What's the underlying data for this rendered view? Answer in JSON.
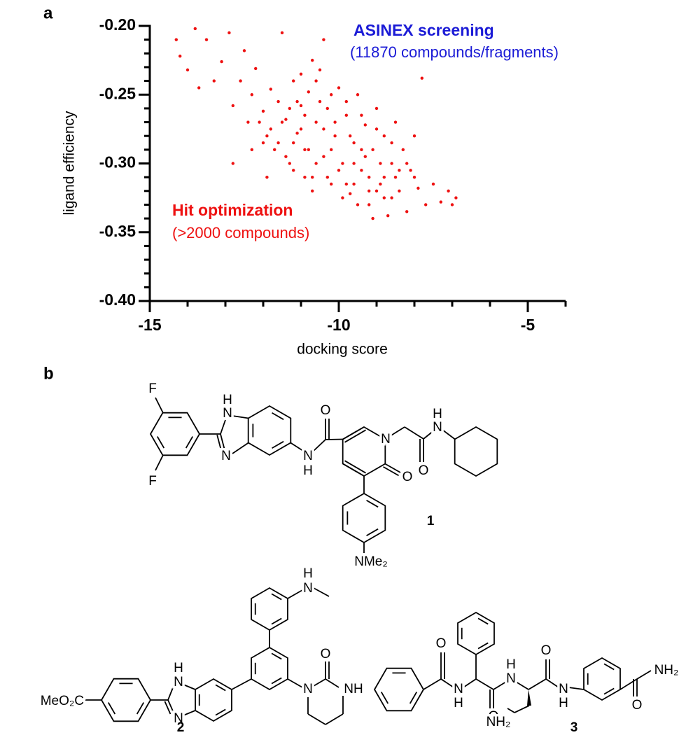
{
  "panel_labels": [
    "a",
    "b"
  ],
  "chart_data": {
    "type": "scatter",
    "x_label": "docking score",
    "y_label": "ligand efficiency",
    "color": "#ee1111",
    "annotations": [
      {
        "text": "ASINEX screening",
        "color": "#1b1bd6"
      },
      {
        "text": "(11870 compounds/fragments)",
        "color": "#1b1bd6"
      },
      {
        "text": "Hit optimization",
        "color": "#ee1111"
      },
      {
        "text": "(>2000 compounds)",
        "color": "#ee1111"
      }
    ],
    "xlim": [
      -15,
      -4
    ],
    "ylim": [
      -0.4,
      -0.2
    ],
    "xticks": [
      -15,
      -10,
      -5
    ],
    "yticks": [
      {
        "value": -0.2,
        "label": "-0.20"
      },
      {
        "value": -0.25,
        "label": "-0.25"
      },
      {
        "value": -0.3,
        "label": "-0.30"
      },
      {
        "value": -0.35,
        "label": "-0.35"
      },
      {
        "value": -0.4,
        "label": "-0.40"
      }
    ],
    "xminorticks": [
      -14,
      -13,
      -12,
      -11,
      -9,
      -8,
      -7,
      -6,
      -4
    ],
    "yminorticks": [
      -0.21,
      -0.22,
      -0.23,
      -0.24,
      -0.26,
      -0.27,
      -0.28,
      -0.29,
      -0.31,
      -0.32,
      -0.33,
      -0.34,
      -0.36,
      -0.37,
      -0.38,
      -0.39
    ],
    "x": [
      -14.3,
      -14.2,
      -14.0,
      -13.8,
      -13.7,
      -13.5,
      -13.3,
      -13.1,
      -12.9,
      -12.8,
      -12.6,
      -12.5,
      -12.3,
      -12.2,
      -12.1,
      -12.0,
      -11.9,
      -11.8,
      -11.7,
      -11.6,
      -11.5,
      -11.4,
      -11.3,
      -11.2,
      -11.1,
      -11.0,
      -10.9,
      -10.8,
      -10.7,
      -10.6,
      -10.5,
      -10.4,
      -10.3,
      -10.2,
      -10.1,
      -10.0,
      -9.9,
      -9.8,
      -9.7,
      -9.6,
      -9.5,
      -9.4,
      -9.3,
      -9.2,
      -9.1,
      -9.0,
      -8.9,
      -8.8,
      -8.7,
      -8.6,
      -8.5,
      -8.4,
      -8.3,
      -8.2,
      -8.1,
      -8.0,
      -7.9,
      -7.8,
      -7.7,
      -7.5,
      -7.3,
      -7.1,
      -7.0,
      -6.9,
      -11.5,
      -11.2,
      -11.0,
      -10.8,
      -10.6,
      -10.4,
      -10.2,
      -10.0,
      -9.8,
      -9.6,
      -9.4,
      -9.2,
      -9.0,
      -8.8,
      -8.6,
      -11.3,
      -10.9,
      -10.5,
      -10.1,
      -9.7,
      -9.3,
      -8.9,
      -8.5,
      -11.8,
      -11.6,
      -11.4,
      -10.7,
      -10.3,
      -9.9,
      -9.5,
      -9.1,
      -12.4,
      -12.0,
      -11.1,
      -10.6,
      -10.2,
      -9.8,
      -9.4,
      -9.0,
      -8.6,
      -8.2,
      -8.0,
      -12.8,
      -12.3,
      -11.9,
      -11.2,
      -10.9,
      -9.6,
      -9.2,
      -8.8,
      -8.4,
      -10.4,
      -11.0,
      -10.7
    ],
    "values": [
      -0.21,
      -0.222,
      -0.232,
      -0.202,
      -0.245,
      -0.21,
      -0.24,
      -0.226,
      -0.205,
      -0.258,
      -0.24,
      -0.218,
      -0.25,
      -0.231,
      -0.27,
      -0.262,
      -0.28,
      -0.246,
      -0.29,
      -0.255,
      -0.205,
      -0.268,
      -0.3,
      -0.24,
      -0.278,
      -0.258,
      -0.29,
      -0.248,
      -0.31,
      -0.27,
      -0.232,
      -0.295,
      -0.26,
      -0.315,
      -0.28,
      -0.245,
      -0.3,
      -0.265,
      -0.322,
      -0.285,
      -0.25,
      -0.305,
      -0.272,
      -0.33,
      -0.29,
      -0.26,
      -0.315,
      -0.28,
      -0.338,
      -0.3,
      -0.27,
      -0.32,
      -0.29,
      -0.335,
      -0.305,
      -0.28,
      -0.318,
      -0.238,
      -0.33,
      -0.315,
      -0.328,
      -0.32,
      -0.33,
      -0.325,
      -0.27,
      -0.285,
      -0.275,
      -0.29,
      -0.3,
      -0.275,
      -0.29,
      -0.305,
      -0.315,
      -0.3,
      -0.29,
      -0.31,
      -0.32,
      -0.31,
      -0.325,
      -0.26,
      -0.265,
      -0.255,
      -0.27,
      -0.28,
      -0.295,
      -0.3,
      -0.31,
      -0.275,
      -0.285,
      -0.295,
      -0.32,
      -0.31,
      -0.325,
      -0.33,
      -0.34,
      -0.27,
      -0.285,
      -0.255,
      -0.24,
      -0.25,
      -0.255,
      -0.265,
      -0.275,
      -0.285,
      -0.3,
      -0.31,
      -0.3,
      -0.29,
      -0.31,
      -0.305,
      -0.31,
      -0.315,
      -0.32,
      -0.325,
      -0.305,
      -0.21,
      -0.235,
      -0.225
    ]
  },
  "structures": [
    {
      "label": "1",
      "atoms": [
        "F",
        "F",
        "H",
        "N",
        "N",
        "N",
        "H",
        "O",
        "N",
        "O",
        "O",
        "H",
        "N",
        "NMe₂"
      ]
    },
    {
      "label": "2",
      "atoms": [
        "H",
        "N",
        "N",
        "O",
        "NH",
        "H",
        "N",
        "N",
        "MeO₂C"
      ]
    },
    {
      "label": "3",
      "atoms": [
        "O",
        "N",
        "H",
        "O",
        "H",
        "N",
        "O",
        "N",
        "H",
        "O",
        "NH₂",
        "NH₂"
      ]
    }
  ]
}
